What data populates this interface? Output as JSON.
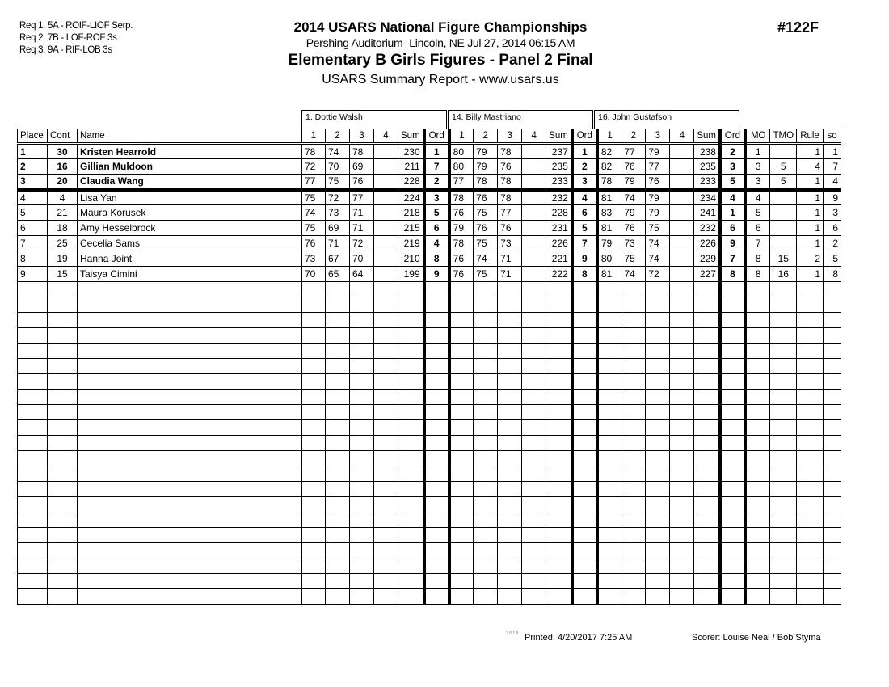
{
  "requirements": [
    "Req 1.  5A - ROIF-LIOF Serp.",
    "Req 2.  7B - LOF-ROF 3s",
    "Req 3.  9A - RIF-LOB 3s"
  ],
  "header": {
    "title": "2014 USARS National Figure Championships",
    "venue": "Pershing Auditorium- Lincoln, NE  Jul 27, 2014  06:15 AM",
    "event": "Elementary B Girls Figures - Panel 2 Final",
    "report": "USARS Summary Report - www.usars.us",
    "event_number": "#122F"
  },
  "judges": [
    "1.  Dottie Walsh",
    "14.  Billy Mastriano",
    "16.  John Gustafson"
  ],
  "columns": {
    "place": "Place",
    "cont": "Cont",
    "name": "Name",
    "judge_cols": [
      "1",
      "2",
      "3",
      "4",
      "Sum",
      "Ord"
    ],
    "mo": "MO",
    "tmo": "TMO",
    "rule": "Rule",
    "so": "so"
  },
  "rows": [
    {
      "place": "1",
      "cont": "30",
      "name": "Kristen Hearrold",
      "bold": true,
      "j": [
        [
          "78",
          "74",
          "78",
          "",
          "230",
          "1"
        ],
        [
          "80",
          "79",
          "78",
          "",
          "237",
          "1"
        ],
        [
          "82",
          "77",
          "79",
          "",
          "238",
          "2"
        ]
      ],
      "mo": "1",
      "tmo": "",
      "rule": "1",
      "so": "1"
    },
    {
      "place": "2",
      "cont": "16",
      "name": "Gillian Muldoon",
      "bold": true,
      "j": [
        [
          "72",
          "70",
          "69",
          "",
          "211",
          "7"
        ],
        [
          "80",
          "79",
          "76",
          "",
          "235",
          "2"
        ],
        [
          "82",
          "76",
          "77",
          "",
          "235",
          "3"
        ]
      ],
      "mo": "3",
      "tmo": "5",
      "rule": "4",
      "so": "7"
    },
    {
      "place": "3",
      "cont": "20",
      "name": "Claudia Wang",
      "bold": true,
      "j": [
        [
          "77",
          "75",
          "76",
          "",
          "228",
          "2"
        ],
        [
          "77",
          "78",
          "78",
          "",
          "233",
          "3"
        ],
        [
          "78",
          "79",
          "76",
          "",
          "233",
          "5"
        ]
      ],
      "mo": "3",
      "tmo": "5",
      "rule": "1",
      "so": "4"
    },
    {
      "place": "4",
      "cont": "4",
      "name": "Lisa Yan",
      "bold": false,
      "j": [
        [
          "75",
          "72",
          "77",
          "",
          "224",
          "3"
        ],
        [
          "78",
          "76",
          "78",
          "",
          "232",
          "4"
        ],
        [
          "81",
          "74",
          "79",
          "",
          "234",
          "4"
        ]
      ],
      "mo": "4",
      "tmo": "",
      "rule": "1",
      "so": "9"
    },
    {
      "place": "5",
      "cont": "21",
      "name": "Maura Korusek",
      "bold": false,
      "j": [
        [
          "74",
          "73",
          "71",
          "",
          "218",
          "5"
        ],
        [
          "76",
          "75",
          "77",
          "",
          "228",
          "6"
        ],
        [
          "83",
          "79",
          "79",
          "",
          "241",
          "1"
        ]
      ],
      "mo": "5",
      "tmo": "",
      "rule": "1",
      "so": "3"
    },
    {
      "place": "6",
      "cont": "18",
      "name": "Amy Hesselbrock",
      "bold": false,
      "j": [
        [
          "75",
          "69",
          "71",
          "",
          "215",
          "6"
        ],
        [
          "79",
          "76",
          "76",
          "",
          "231",
          "5"
        ],
        [
          "81",
          "76",
          "75",
          "",
          "232",
          "6"
        ]
      ],
      "mo": "6",
      "tmo": "",
      "rule": "1",
      "so": "6"
    },
    {
      "place": "7",
      "cont": "25",
      "name": "Cecelia Sams",
      "bold": false,
      "j": [
        [
          "76",
          "71",
          "72",
          "",
          "219",
          "4"
        ],
        [
          "78",
          "75",
          "73",
          "",
          "226",
          "7"
        ],
        [
          "79",
          "73",
          "74",
          "",
          "226",
          "9"
        ]
      ],
      "mo": "7",
      "tmo": "",
      "rule": "1",
      "so": "2"
    },
    {
      "place": "8",
      "cont": "19",
      "name": "Hanna Joint",
      "bold": false,
      "j": [
        [
          "73",
          "67",
          "70",
          "",
          "210",
          "8"
        ],
        [
          "76",
          "74",
          "71",
          "",
          "221",
          "9"
        ],
        [
          "80",
          "75",
          "74",
          "",
          "229",
          "7"
        ]
      ],
      "mo": "8",
      "tmo": "15",
      "rule": "2",
      "so": "5"
    },
    {
      "place": "9",
      "cont": "15",
      "name": "Taisya Cimini",
      "bold": false,
      "j": [
        [
          "70",
          "65",
          "64",
          "",
          "199",
          "9"
        ],
        [
          "76",
          "75",
          "71",
          "",
          "222",
          "8"
        ],
        [
          "81",
          "74",
          "72",
          "",
          "227",
          "8"
        ]
      ],
      "mo": "8",
      "tmo": "16",
      "rule": "1",
      "so": "8"
    }
  ],
  "footer": {
    "version": "3.8.1.8",
    "printed": "Printed:  4/20/2017  7:25 AM",
    "scorer": "Scorer:   Louise Neal / Bob Styma"
  }
}
